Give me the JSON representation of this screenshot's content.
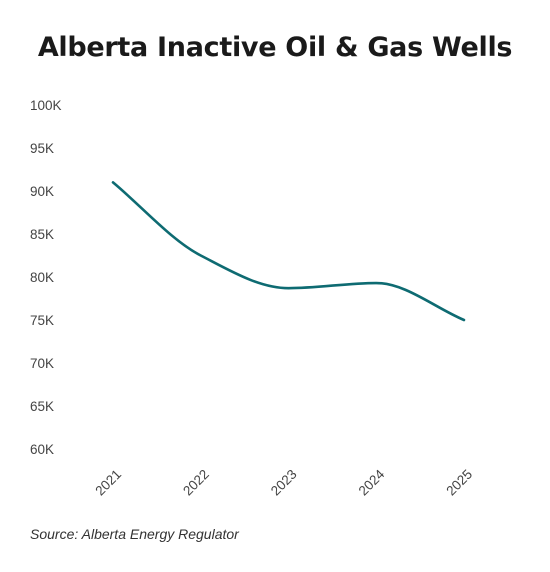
{
  "chart_data": {
    "type": "line",
    "title": "Alberta Inactive Oil & Gas Wells",
    "xlabel": "",
    "ylabel": "",
    "categories": [
      "2021",
      "2022",
      "2023",
      "2024",
      "2025"
    ],
    "series": [
      {
        "values": [
          91000,
          82500,
          78700,
          79300,
          75000
        ],
        "color": "#0e6b72"
      }
    ],
    "ylim": [
      60000,
      100000
    ],
    "yticks": [
      {
        "value": 100000,
        "label": "100K"
      },
      {
        "value": 95000,
        "label": "95K"
      },
      {
        "value": 90000,
        "label": "90K"
      },
      {
        "value": 85000,
        "label": "85K"
      },
      {
        "value": 80000,
        "label": "80K"
      },
      {
        "value": 75000,
        "label": "75K"
      },
      {
        "value": 70000,
        "label": "70K"
      },
      {
        "value": 65000,
        "label": "65K"
      },
      {
        "value": 60000,
        "label": "60K"
      }
    ],
    "grid": false,
    "legend": "none",
    "source": "Source: Alberta Energy Regulator"
  }
}
